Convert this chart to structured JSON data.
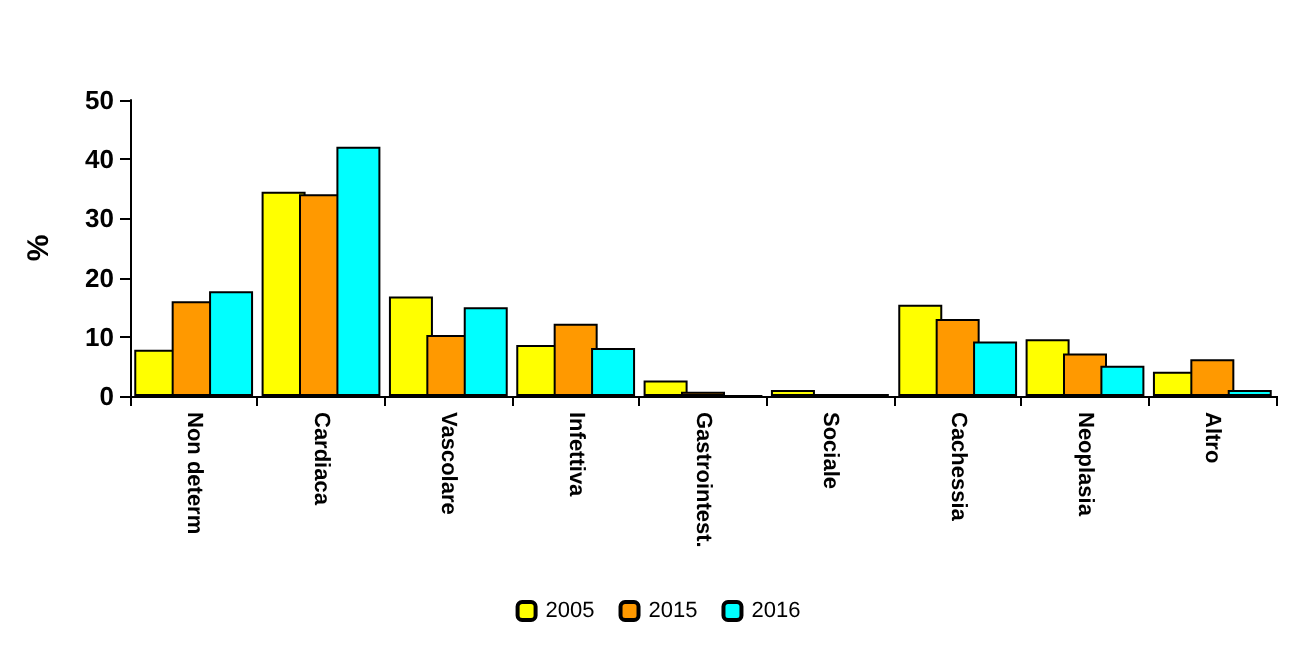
{
  "chart_data": {
    "type": "bar",
    "ylabel": "%",
    "categories": [
      "Non determ",
      "Cardiaca",
      "Vascolare",
      "Infettiva",
      "Gastrointest.",
      "Sociale",
      "Cachessia",
      "Neoplasia",
      "Altro"
    ],
    "series": [
      {
        "name": "2005",
        "color": "#ffff00",
        "values": [
          7.8,
          34.5,
          16.8,
          8.6,
          2.6,
          1.0,
          15.4,
          9.6,
          4.1
        ]
      },
      {
        "name": "2015",
        "color": "#ff9900",
        "values": [
          16,
          34.1,
          10.3,
          12.2,
          0.7,
          0.3,
          13,
          7.2,
          6.2
        ]
      },
      {
        "name": "2016",
        "color": "#00ffff",
        "values": [
          17.7,
          42.1,
          15,
          8.1,
          0,
          0.3,
          9.2,
          5.1,
          1.0
        ]
      }
    ],
    "ylim": [
      0,
      50
    ],
    "yticks": [
      0,
      10,
      20,
      30,
      40,
      50
    ],
    "grid": false,
    "legend": "bottom"
  }
}
